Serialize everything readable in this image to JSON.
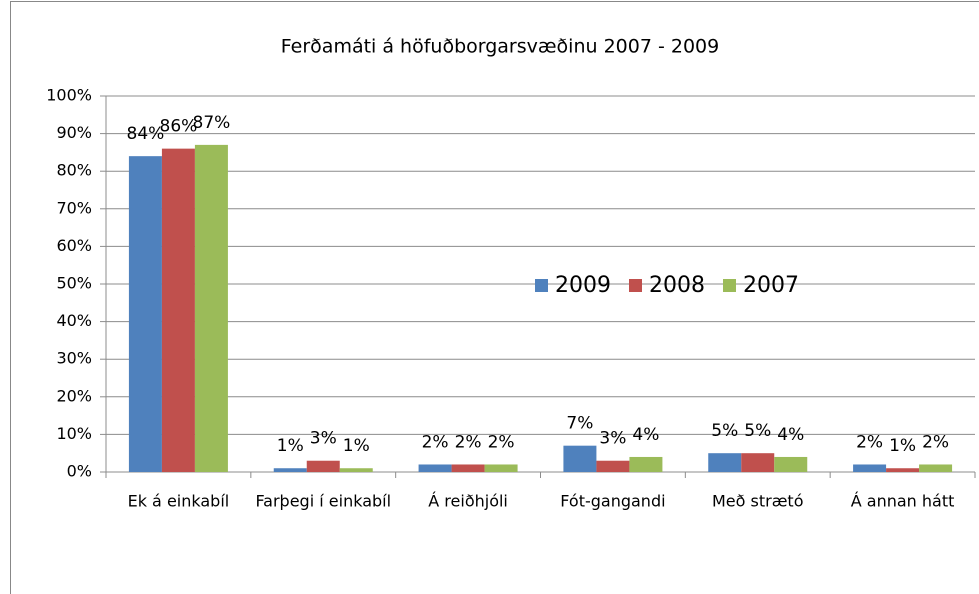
{
  "chart_data": {
    "type": "bar",
    "title": "Ferðamáti á höfuðborgarsvæðinu 2007 - 2009",
    "categories": [
      "Ek á einkabíl",
      "Farþegi í einkabíl",
      "Á reiðhjóli",
      "Fót-gangandi",
      "Með strætó",
      "Á annan hátt"
    ],
    "series": [
      {
        "name": "2009",
        "color": "#4f81bd",
        "values": [
          84,
          1,
          2,
          7,
          5,
          2
        ],
        "value_labels": [
          "84%",
          "1%",
          "2%",
          "7%",
          "5%",
          "2%"
        ]
      },
      {
        "name": "2008",
        "color": "#c0504d",
        "values": [
          86,
          3,
          2,
          3,
          5,
          1
        ],
        "value_labels": [
          "86%",
          "3%",
          "2%",
          "3%",
          "5%",
          "1%"
        ]
      },
      {
        "name": "2007",
        "color": "#9bbb59",
        "values": [
          87,
          1,
          2,
          4,
          4,
          2
        ],
        "value_labels": [
          "87%",
          "1%",
          "2%",
          "4%",
          "4%",
          "2%"
        ]
      }
    ],
    "ylim": [
      0,
      100
    ],
    "yticks": [
      {
        "value": 0,
        "label": "0%"
      },
      {
        "value": 10,
        "label": "10%"
      },
      {
        "value": 20,
        "label": "20%"
      },
      {
        "value": 30,
        "label": "30%"
      },
      {
        "value": 40,
        "label": "40%"
      },
      {
        "value": 50,
        "label": "50%"
      },
      {
        "value": 60,
        "label": "60%"
      },
      {
        "value": 70,
        "label": "70%"
      },
      {
        "value": 80,
        "label": "80%"
      },
      {
        "value": 90,
        "label": "90%"
      },
      {
        "value": 100,
        "label": "100%"
      }
    ],
    "grid": true,
    "legend": "center"
  }
}
